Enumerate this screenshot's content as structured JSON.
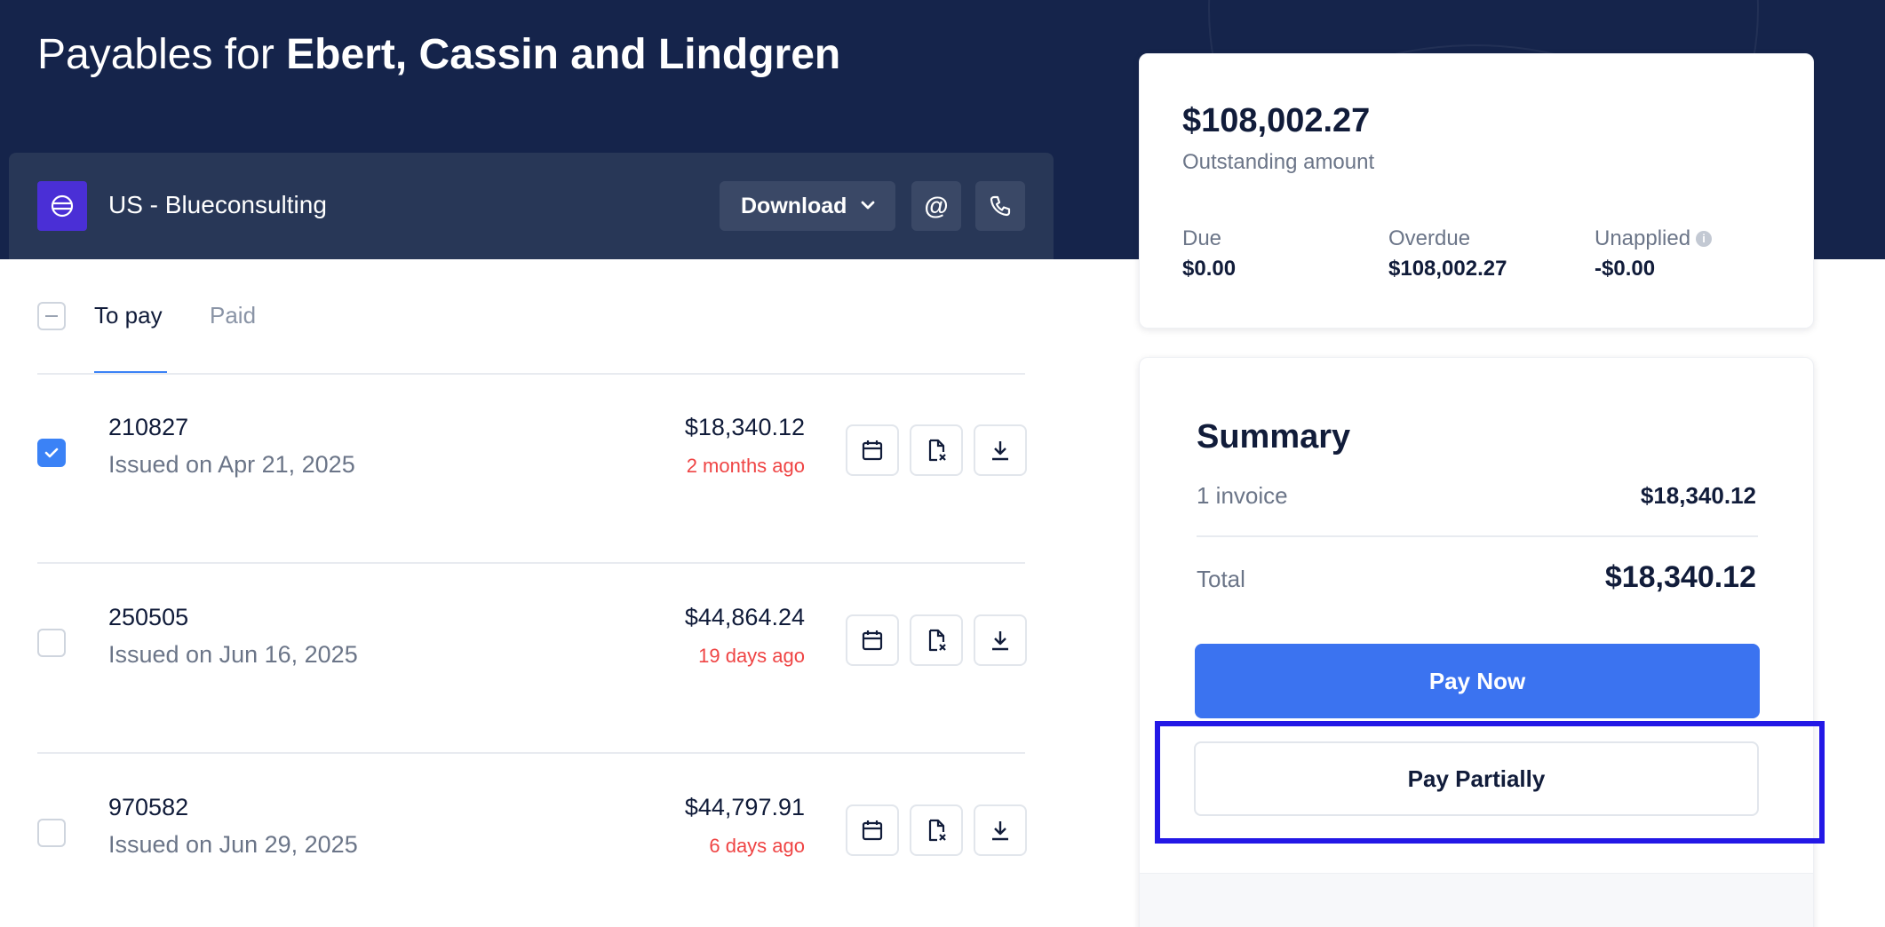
{
  "header": {
    "title_prefix": "Payables for ",
    "company": "Ebert, Cassin and Lindgren"
  },
  "account": {
    "name": "US - Blueconsulting",
    "download_label": "Download",
    "email_symbol": "@"
  },
  "tabs": [
    {
      "label": "To pay",
      "active": true
    },
    {
      "label": "Paid",
      "active": false
    }
  ],
  "invoices": [
    {
      "number": "210827",
      "issued": "Issued on Apr 21, 2025",
      "amount": "$18,340.12",
      "age": "2 months ago",
      "checked": true
    },
    {
      "number": "250505",
      "issued": "Issued on Jun 16, 2025",
      "amount": "$44,864.24",
      "age": "19 days ago",
      "checked": false
    },
    {
      "number": "970582",
      "issued": "Issued on Jun 29, 2025",
      "amount": "$44,797.91",
      "age": "6 days ago",
      "checked": false
    }
  ],
  "outstanding": {
    "amount": "$108,002.27",
    "label": "Outstanding amount",
    "due_label": "Due",
    "due_value": "$0.00",
    "overdue_label": "Overdue",
    "overdue_value": "$108,002.27",
    "unapplied_label": "Unapplied",
    "unapplied_value": "-$0.00",
    "info_symbol": "i"
  },
  "summary": {
    "title": "Summary",
    "invoice_count_label": "1 invoice",
    "invoice_count_value": "$18,340.12",
    "total_label": "Total",
    "total_value": "$18,340.12",
    "pay_now_label": "Pay Now",
    "pay_partially_label": "Pay Partially"
  },
  "colors": {
    "header_bg": "#15244b",
    "accent": "#3b73f0",
    "overdue_text": "#ef4444",
    "highlight": "#2318e6"
  }
}
